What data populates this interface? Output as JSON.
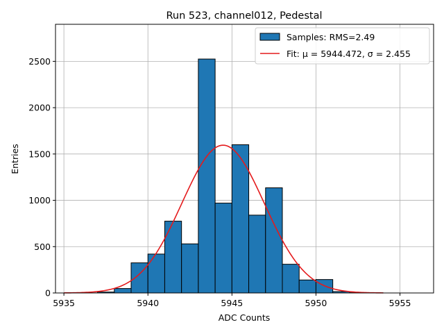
{
  "chart_data": {
    "type": "bar",
    "title": "Run 523, channel012, Pedestal",
    "xlabel": "ADC Counts",
    "ylabel": "Entries",
    "xlim": [
      5934.5,
      5957
    ],
    "ylim": [
      0,
      2900
    ],
    "x_ticks": [
      5935,
      5940,
      5945,
      5950,
      5955
    ],
    "y_ticks": [
      0,
      500,
      1000,
      1500,
      2000,
      2500
    ],
    "grid": true,
    "legend_position": "top-right",
    "bins": {
      "edges": [
        5936,
        5937,
        5938,
        5939,
        5940,
        5941,
        5942,
        5943,
        5944,
        5945,
        5946,
        5947,
        5948,
        5949,
        5950,
        5951,
        5952,
        5953,
        5954,
        5955,
        5956
      ],
      "counts": [
        1,
        10,
        48,
        325,
        420,
        775,
        530,
        2525,
        970,
        1600,
        840,
        1135,
        310,
        140,
        145,
        15,
        3,
        1,
        0,
        0
      ]
    },
    "fit": {
      "mu": 5944.472,
      "sigma": 2.455,
      "amplitude": 1595,
      "x_range": [
        5935,
        5954
      ]
    },
    "series": [
      {
        "name": "Samples: RMS=2.49",
        "kind": "histogram",
        "color": "#1f77b4"
      },
      {
        "name": "Fit: μ = 5944.472, σ = 2.455",
        "kind": "line",
        "color": "#e41a1c"
      }
    ]
  }
}
